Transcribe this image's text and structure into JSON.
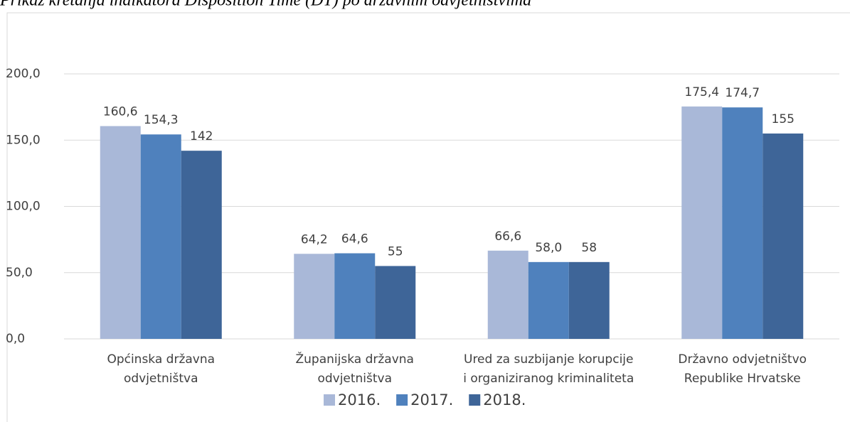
{
  "chart_data": {
    "type": "bar",
    "title": "Prikaz kretanja indikatora Disposition Time (DT) po državnim odvjetništvima",
    "categories": [
      [
        "Općinska državna",
        "odvjetništva"
      ],
      [
        "Županijska državna",
        "odvjetništva"
      ],
      [
        "Ured za suzbijanje korupcije",
        "i organiziranog kriminaliteta"
      ],
      [
        "Državno odvjetništvo",
        "Republike Hrvatske"
      ]
    ],
    "series": [
      {
        "name": "2016.",
        "color": "#a9b8d8",
        "values": [
          160.6,
          64.2,
          66.6,
          175.4
        ],
        "value_labels": [
          "160,6",
          "64,2",
          "66,6",
          "175,4"
        ]
      },
      {
        "name": "2017.",
        "color": "#4f81bd",
        "values": [
          154.3,
          64.6,
          58.0,
          174.7
        ],
        "value_labels": [
          "154,3",
          "64,6",
          "58,0",
          "174,7"
        ]
      },
      {
        "name": "2018.",
        "color": "#3e6598",
        "values": [
          142,
          55,
          58,
          155
        ]
      }
    ],
    "ylim": [
      0,
      200
    ],
    "yticks": [
      {
        "value": 0,
        "label": "0,0"
      },
      {
        "value": 50,
        "label": "50,0"
      },
      {
        "value": 100,
        "label": "100,0"
      },
      {
        "value": 150,
        "label": "150,0"
      },
      {
        "value": 200,
        "label": "200,0"
      }
    ],
    "grid": true,
    "legend": "bottom"
  }
}
